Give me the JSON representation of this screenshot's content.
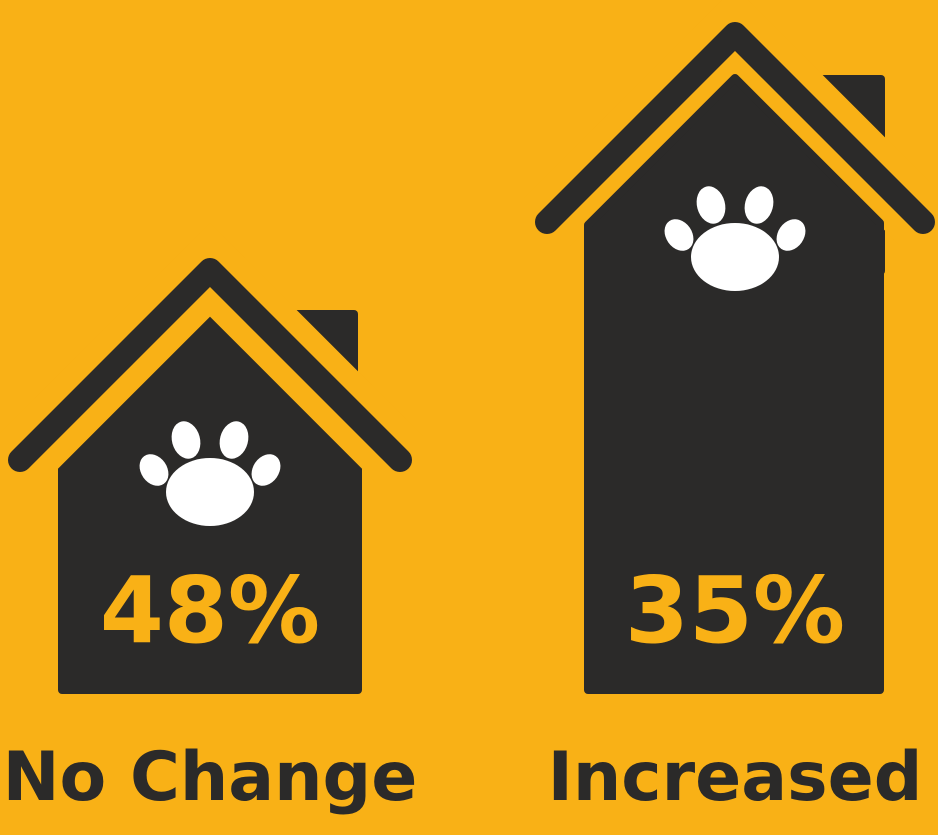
{
  "items": [
    {
      "value": "48%",
      "label": "No Change"
    },
    {
      "value": "35%",
      "label": "Increased"
    }
  ]
}
